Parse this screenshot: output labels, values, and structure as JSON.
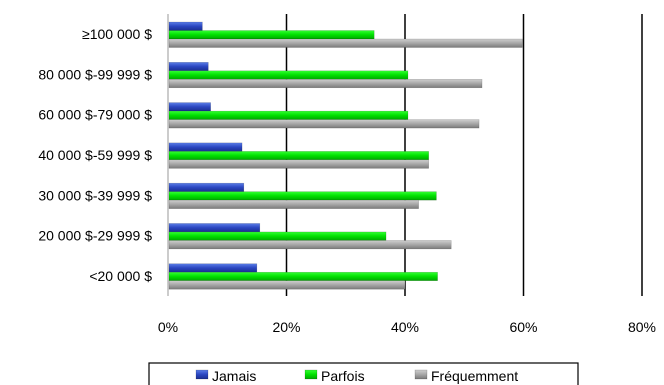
{
  "chart_data": {
    "type": "bar",
    "orientation": "horizontal",
    "categories": [
      "≥100 000 $",
      "80 000 $-99 999 $",
      "60 000 $-79 000 $",
      "40 000 $-59 999 $",
      "30 000 $-39 999 $",
      "20 000 $-29 999 $",
      "<20 000 $"
    ],
    "series": [
      {
        "name": "Jamais",
        "color": "#3355cc",
        "values": [
          5.8,
          6.8,
          7.2,
          12.5,
          12.8,
          15.5,
          15.0
        ]
      },
      {
        "name": "Parfois",
        "color": "#00dd00",
        "values": [
          34.8,
          40.5,
          40.5,
          44.0,
          45.3,
          36.8,
          45.5
        ]
      },
      {
        "name": "Fréquemment",
        "color": "#a6a6a6",
        "values": [
          59.8,
          53.0,
          52.5,
          44.0,
          42.3,
          47.8,
          40.0
        ]
      }
    ],
    "xlim": [
      0,
      80
    ],
    "x_ticks": [
      "0%",
      "20%",
      "40%",
      "60%",
      "80%"
    ],
    "x_tick_values": [
      0,
      20,
      40,
      60,
      80
    ],
    "grid": "vertical",
    "legend": "bottom",
    "title": "",
    "xlabel": "",
    "ylabel": ""
  }
}
